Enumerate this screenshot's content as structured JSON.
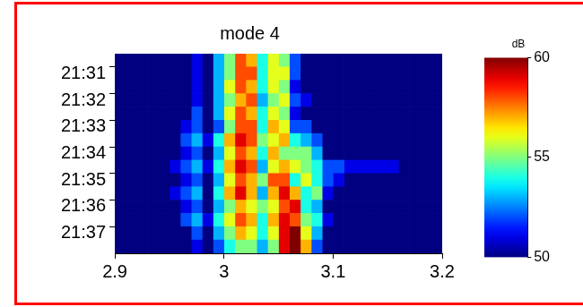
{
  "chart_data": {
    "type": "heatmap",
    "title": "mode 4",
    "x_bins": [
      2.9,
      2.91,
      2.92,
      2.93,
      2.94,
      2.95,
      2.96,
      2.97,
      2.98,
      2.99,
      3.0,
      3.01,
      3.02,
      3.03,
      3.04,
      3.05,
      3.06,
      3.07,
      3.08,
      3.09,
      3.1,
      3.11,
      3.12,
      3.13,
      3.14,
      3.15,
      3.16,
      3.17,
      3.18,
      3.19,
      3.2
    ],
    "categories": [
      null,
      "21:31",
      null,
      "21:32",
      null,
      "21:33",
      null,
      "21:34",
      null,
      "21:35",
      null,
      "21:36",
      null,
      "21:37",
      null
    ],
    "cells": [
      [
        50,
        50,
        50,
        50,
        50,
        50,
        50,
        51,
        50,
        53,
        55,
        58,
        57,
        54,
        56,
        55,
        52,
        50,
        50,
        50,
        50,
        50,
        50,
        50,
        50,
        50,
        50,
        50,
        50,
        50
      ],
      [
        50,
        50,
        50,
        50,
        50,
        50,
        50,
        51,
        50,
        53,
        55,
        58,
        58,
        54,
        56,
        56,
        52,
        50,
        50,
        50,
        50,
        50,
        50,
        50,
        50,
        50,
        50,
        50,
        50,
        50
      ],
      [
        50,
        50,
        50,
        50,
        50,
        50,
        50,
        51,
        50,
        53,
        56,
        58,
        57,
        54,
        56,
        55,
        51,
        50,
        50,
        50,
        50,
        50,
        50,
        50,
        50,
        50,
        50,
        50,
        50,
        50
      ],
      [
        50,
        50,
        50,
        50,
        50,
        50,
        50,
        51,
        50,
        53,
        55,
        57,
        58,
        53,
        55,
        56,
        52,
        51,
        50,
        50,
        50,
        50,
        50,
        50,
        50,
        50,
        50,
        50,
        50,
        50
      ],
      [
        50,
        50,
        50,
        50,
        50,
        50,
        50,
        52,
        50,
        53,
        56,
        58,
        57,
        54,
        56,
        55,
        51,
        50,
        50,
        50,
        50,
        50,
        50,
        50,
        50,
        50,
        50,
        50,
        50,
        50
      ],
      [
        50,
        50,
        50,
        50,
        50,
        50,
        51,
        52,
        50,
        52,
        55,
        58,
        58,
        54,
        57,
        56,
        52,
        52,
        50,
        50,
        50,
        50,
        50,
        50,
        50,
        50,
        50,
        50,
        50,
        50
      ],
      [
        50,
        50,
        50,
        50,
        50,
        50,
        52,
        53,
        51,
        54,
        57,
        59,
        58,
        55,
        56,
        57,
        54,
        53,
        52,
        50,
        50,
        50,
        50,
        50,
        50,
        50,
        50,
        50,
        50,
        50
      ],
      [
        50,
        50,
        50,
        50,
        50,
        50,
        51,
        52,
        50,
        53,
        56,
        58,
        57,
        54,
        57,
        55,
        55,
        55,
        53,
        50,
        50,
        50,
        50,
        50,
        50,
        50,
        50,
        50,
        50,
        50
      ],
      [
        50,
        50,
        50,
        50,
        50,
        51,
        52,
        53,
        51,
        54,
        57,
        59,
        58,
        53,
        56,
        57,
        56,
        55,
        54,
        52,
        52,
        51,
        51,
        51,
        51,
        51,
        50,
        50,
        50,
        50
      ],
      [
        50,
        50,
        50,
        50,
        50,
        50,
        51,
        52,
        50,
        53,
        56,
        58,
        57,
        55,
        58,
        58,
        54,
        56,
        54,
        52,
        51,
        50,
        50,
        50,
        50,
        50,
        50,
        50,
        50,
        50
      ],
      [
        50,
        50,
        50,
        50,
        50,
        51,
        52,
        53,
        50,
        54,
        57,
        59,
        57,
        53,
        57,
        59,
        57,
        54,
        55,
        51,
        50,
        50,
        50,
        50,
        50,
        50,
        50,
        50,
        50,
        50
      ],
      [
        50,
        50,
        50,
        50,
        50,
        50,
        51,
        52,
        50,
        53,
        55,
        57,
        56,
        55,
        56,
        58,
        59,
        54,
        53,
        50,
        50,
        50,
        50,
        50,
        50,
        50,
        50,
        50,
        50,
        50
      ],
      [
        50,
        50,
        50,
        50,
        50,
        50,
        52,
        53,
        51,
        54,
        56,
        58,
        57,
        54,
        57,
        59,
        58,
        55,
        54,
        51,
        50,
        50,
        50,
        50,
        50,
        50,
        50,
        50,
        50,
        50
      ],
      [
        50,
        50,
        50,
        50,
        50,
        50,
        50,
        52,
        50,
        53,
        55,
        57,
        56,
        54,
        56,
        59,
        60,
        56,
        53,
        50,
        50,
        50,
        50,
        50,
        50,
        50,
        50,
        50,
        50,
        50
      ],
      [
        50,
        50,
        50,
        50,
        50,
        50,
        50,
        51,
        50,
        52,
        54,
        55,
        55,
        53,
        55,
        59,
        60,
        57,
        52,
        50,
        50,
        50,
        50,
        50,
        50,
        50,
        50,
        50,
        50,
        50
      ]
    ],
    "xlim": [
      2.9,
      3.2
    ],
    "xticks": [
      2.9,
      3,
      3.1,
      3.2
    ],
    "colorbar": {
      "title": "dB",
      "lim": [
        50,
        60
      ],
      "ticks": [
        50,
        55,
        60
      ]
    },
    "grid": false
  }
}
